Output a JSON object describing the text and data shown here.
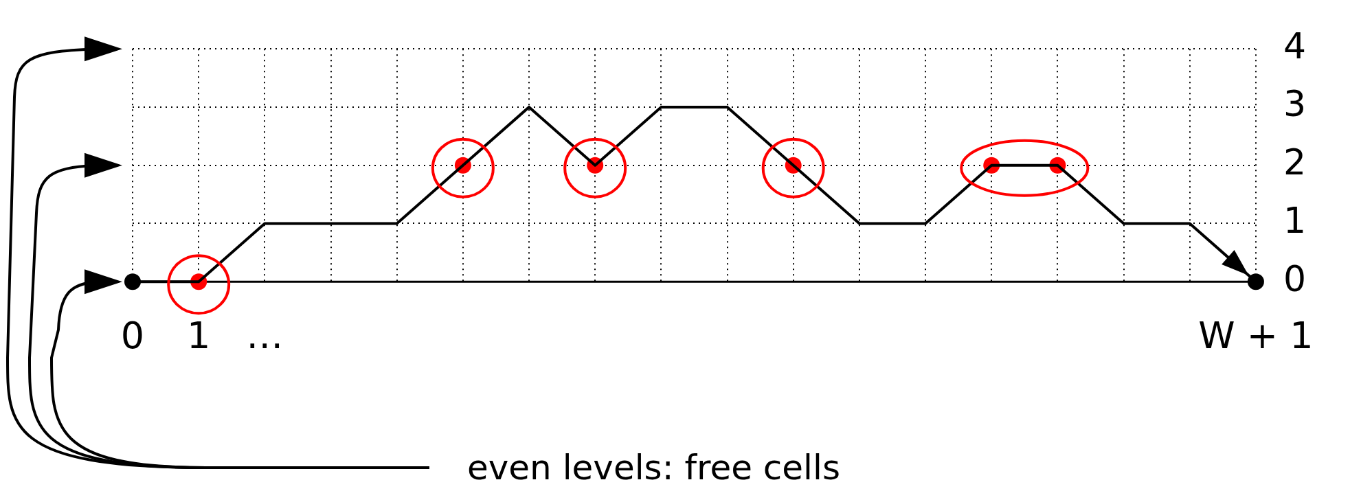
{
  "chart_data": {
    "type": "line",
    "categories": [
      "0",
      "1",
      "…",
      null,
      null,
      null,
      null,
      null,
      null,
      null,
      null,
      null,
      null,
      null,
      null,
      null,
      null,
      "W + 1"
    ],
    "series": [
      {
        "type": "line",
        "color": "#000000",
        "marker": "none",
        "values": [
          0,
          0,
          1,
          1,
          1,
          2,
          3,
          2,
          3,
          3,
          2,
          1,
          1,
          2,
          2,
          1,
          1,
          0
        ]
      },
      {
        "type": "scatter",
        "color": "#ff0000",
        "marker": "circle",
        "values": [
          null,
          0,
          null,
          null,
          null,
          2,
          null,
          2,
          null,
          null,
          2,
          null,
          null,
          2,
          2,
          null,
          null,
          null
        ]
      },
      {
        "type": "scatter",
        "color": "#000000",
        "marker": "circle",
        "values": [
          0,
          null,
          null,
          null,
          null,
          null,
          null,
          null,
          null,
          null,
          null,
          null,
          null,
          null,
          null,
          null,
          null,
          0
        ]
      }
    ],
    "ylim": [
      0,
      4
    ],
    "yticks": [
      0,
      1,
      2,
      3,
      4
    ],
    "grid": true,
    "legend": false,
    "annotations": [
      "even levels: free cells"
    ]
  }
}
